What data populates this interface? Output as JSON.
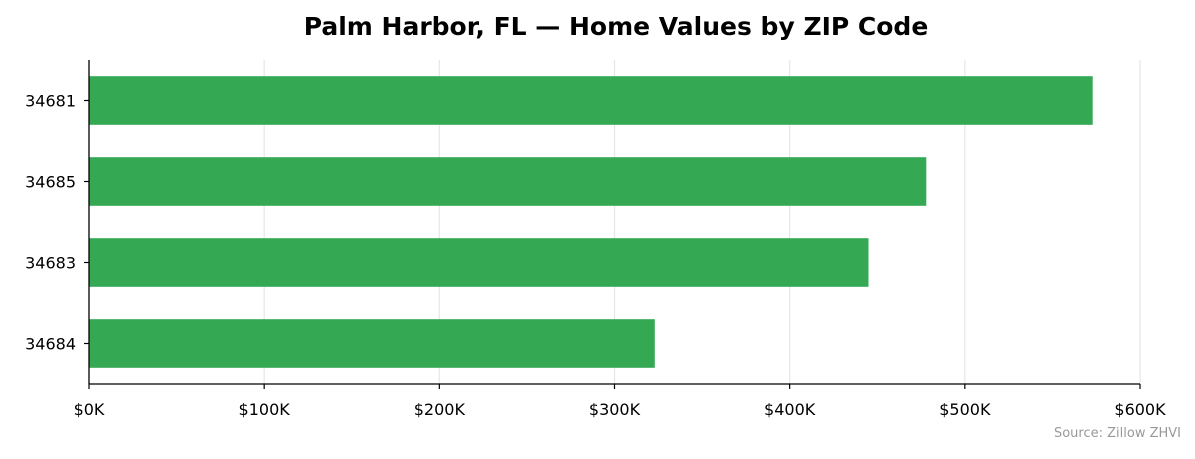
{
  "chart_data": {
    "type": "bar",
    "orientation": "horizontal",
    "title": "Palm Harbor, FL — Home Values by ZIP Code",
    "xlabel": "",
    "ylabel": "",
    "categories": [
      "34681",
      "34685",
      "34683",
      "34684"
    ],
    "values": [
      573000,
      478000,
      445000,
      323000
    ],
    "xlim": [
      0,
      600000
    ],
    "xticks": [
      0,
      100000,
      200000,
      300000,
      400000,
      500000,
      600000
    ],
    "xtick_labels": [
      "$0K",
      "$100K",
      "$200K",
      "$300K",
      "$400K",
      "$500K",
      "$600K"
    ],
    "bar_color": "#34a853",
    "grid": "vertical",
    "grid_color": "#e6e6e6",
    "source": "Source: Zillow ZHVI"
  }
}
